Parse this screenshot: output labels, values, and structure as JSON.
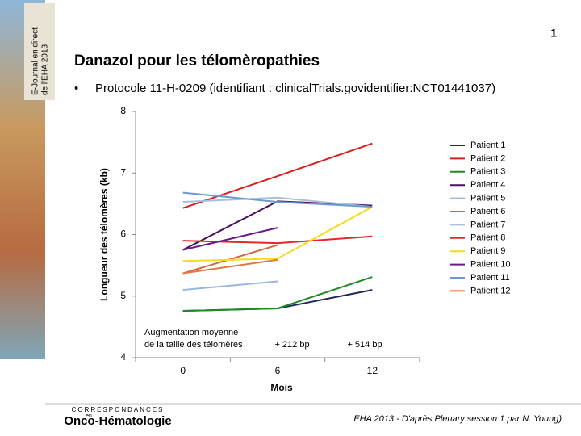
{
  "slide": {
    "page_number": "1",
    "title": "Danazol pour les télomèropathies",
    "bullet": "Protocole 11-H-0209 (identifiant : clinicalTrials.govidentifier:NCT01441037)",
    "side_banner": [
      "E-Journal en direct",
      "de l'EHA 2013"
    ],
    "logo": [
      "CORRESPONDANCES",
      "en",
      "Onco-Hématologie"
    ],
    "footer": "EHA 2013 - D'après Plenary session 1 par N. Young)"
  },
  "chart_data": {
    "type": "line",
    "x_label": "Mois",
    "y_label": "Longueur des télomères (kb)",
    "categories": [
      "0",
      "6",
      "12"
    ],
    "ylim": [
      4,
      8
    ],
    "yticks": [
      4,
      5,
      6,
      7,
      8
    ],
    "grid": false,
    "legend": "right",
    "annotations": [
      "Augmentation moyenne",
      "de la taille des télomères",
      "+ 212 bp",
      "+ 514 bp"
    ],
    "series": [
      {
        "name": "Patient 1",
        "color": "#1f2a5c",
        "values": [
          4.76,
          4.8,
          5.1
        ]
      },
      {
        "name": "Patient 2",
        "color": "#d62020",
        "values": [
          6.43,
          6.95,
          7.48
        ]
      },
      {
        "name": "Patient 3",
        "color": "#1f8a24",
        "values": [
          4.76,
          4.8,
          5.31
        ]
      },
      {
        "name": "Patient 4",
        "color": "#4a1060",
        "values": [
          5.75,
          6.54,
          6.47
        ]
      },
      {
        "name": "Patient 5",
        "color": "#9ab8de",
        "values": [
          5.1,
          5.24,
          null
        ]
      },
      {
        "name": "Patient 6",
        "color": "#d06838",
        "values": [
          5.37,
          5.83,
          null
        ]
      },
      {
        "name": "Patient 7",
        "color": "#a8c0da",
        "values": [
          6.53,
          6.6,
          6.45
        ]
      },
      {
        "name": "Patient 8",
        "color": "#e02828",
        "values": [
          5.9,
          5.86,
          5.97
        ]
      },
      {
        "name": "Patient 9",
        "color": "#f2dc20",
        "values": [
          5.57,
          5.61,
          6.45
        ]
      },
      {
        "name": "Patient 10",
        "color": "#6a1a8a",
        "values": [
          5.75,
          6.11,
          null
        ]
      },
      {
        "name": "Patient 11",
        "color": "#6a9ad0",
        "values": [
          6.68,
          6.53,
          6.45
        ]
      },
      {
        "name": "Patient 12",
        "color": "#e07840",
        "values": [
          5.37,
          5.59,
          null
        ]
      }
    ]
  }
}
